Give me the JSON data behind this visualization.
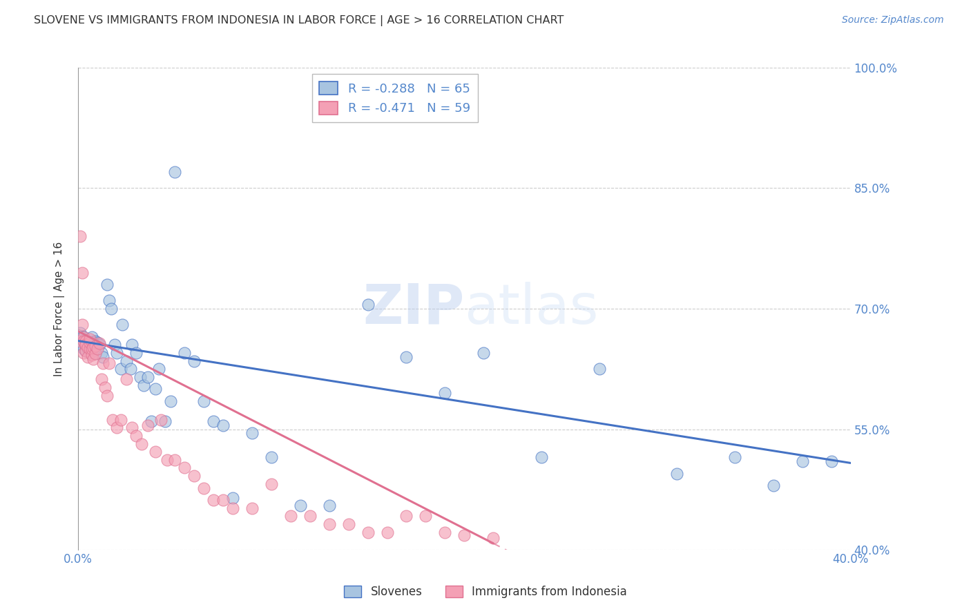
{
  "title": "SLOVENE VS IMMIGRANTS FROM INDONESIA IN LABOR FORCE | AGE > 16 CORRELATION CHART",
  "source": "Source: ZipAtlas.com",
  "ylabel": "In Labor Force | Age > 16",
  "watermark": "ZIPatlas",
  "xmin": 0.0,
  "xmax": 0.4,
  "ymin": 0.4,
  "ymax": 1.0,
  "yticks": [
    0.4,
    0.55,
    0.7,
    0.85,
    1.0
  ],
  "yticklabels": [
    "40.0%",
    "55.0%",
    "70.0%",
    "85.0%",
    "100.0%"
  ],
  "slovene_R": -0.288,
  "slovene_N": 65,
  "indonesia_R": -0.471,
  "indonesia_N": 59,
  "slovene_color": "#a8c4e0",
  "indonesia_color": "#f4a0b5",
  "slovene_line_color": "#4472c4",
  "indonesia_line_color": "#e07090",
  "slovene_x": [
    0.001,
    0.001,
    0.002,
    0.002,
    0.003,
    0.003,
    0.003,
    0.004,
    0.004,
    0.005,
    0.005,
    0.005,
    0.006,
    0.006,
    0.007,
    0.007,
    0.008,
    0.008,
    0.009,
    0.009,
    0.01,
    0.011,
    0.012,
    0.013,
    0.015,
    0.016,
    0.017,
    0.019,
    0.02,
    0.022,
    0.023,
    0.025,
    0.027,
    0.028,
    0.03,
    0.032,
    0.034,
    0.036,
    0.038,
    0.04,
    0.042,
    0.045,
    0.048,
    0.05,
    0.055,
    0.06,
    0.065,
    0.07,
    0.075,
    0.08,
    0.09,
    0.1,
    0.115,
    0.13,
    0.15,
    0.17,
    0.19,
    0.21,
    0.24,
    0.27,
    0.31,
    0.34,
    0.36,
    0.375,
    0.39
  ],
  "slovene_y": [
    0.67,
    0.66,
    0.665,
    0.655,
    0.66,
    0.65,
    0.665,
    0.655,
    0.648,
    0.658,
    0.65,
    0.66,
    0.655,
    0.645,
    0.66,
    0.665,
    0.648,
    0.658,
    0.645,
    0.66,
    0.658,
    0.655,
    0.645,
    0.64,
    0.73,
    0.71,
    0.7,
    0.655,
    0.645,
    0.625,
    0.68,
    0.635,
    0.625,
    0.655,
    0.645,
    0.615,
    0.605,
    0.615,
    0.56,
    0.6,
    0.625,
    0.56,
    0.585,
    0.87,
    0.645,
    0.635,
    0.585,
    0.56,
    0.555,
    0.465,
    0.545,
    0.515,
    0.455,
    0.455,
    0.705,
    0.64,
    0.595,
    0.645,
    0.515,
    0.625,
    0.495,
    0.515,
    0.48,
    0.51,
    0.51
  ],
  "indonesia_x": [
    0.001,
    0.001,
    0.002,
    0.002,
    0.003,
    0.003,
    0.003,
    0.004,
    0.004,
    0.004,
    0.005,
    0.005,
    0.006,
    0.006,
    0.006,
    0.007,
    0.007,
    0.008,
    0.008,
    0.009,
    0.009,
    0.01,
    0.011,
    0.012,
    0.013,
    0.014,
    0.015,
    0.016,
    0.018,
    0.02,
    0.022,
    0.025,
    0.028,
    0.03,
    0.033,
    0.036,
    0.04,
    0.043,
    0.046,
    0.05,
    0.055,
    0.06,
    0.065,
    0.07,
    0.075,
    0.08,
    0.09,
    0.1,
    0.11,
    0.12,
    0.13,
    0.14,
    0.15,
    0.16,
    0.17,
    0.18,
    0.19,
    0.2,
    0.215
  ],
  "indonesia_y": [
    0.79,
    0.66,
    0.745,
    0.68,
    0.665,
    0.645,
    0.66,
    0.66,
    0.648,
    0.655,
    0.652,
    0.64,
    0.65,
    0.658,
    0.662,
    0.642,
    0.65,
    0.637,
    0.652,
    0.644,
    0.654,
    0.65,
    0.657,
    0.612,
    0.632,
    0.602,
    0.592,
    0.632,
    0.562,
    0.552,
    0.562,
    0.612,
    0.552,
    0.542,
    0.532,
    0.555,
    0.522,
    0.562,
    0.512,
    0.512,
    0.502,
    0.492,
    0.477,
    0.462,
    0.462,
    0.452,
    0.452,
    0.482,
    0.442,
    0.442,
    0.432,
    0.432,
    0.422,
    0.422,
    0.442,
    0.442,
    0.422,
    0.418,
    0.415
  ],
  "grid_color": "#cccccc",
  "title_color": "#333333",
  "axis_color": "#5588cc",
  "legend_slovene_label": "Slovenes",
  "legend_indonesia_label": "Immigrants from Indonesia",
  "slovene_line_x0": 0.0,
  "slovene_line_x1": 0.4,
  "slovene_line_y0": 0.66,
  "slovene_line_y1": 0.508,
  "indonesia_line_x0": 0.0,
  "indonesia_line_x1": 0.215,
  "indonesia_line_y0": 0.672,
  "indonesia_line_y1": 0.408
}
